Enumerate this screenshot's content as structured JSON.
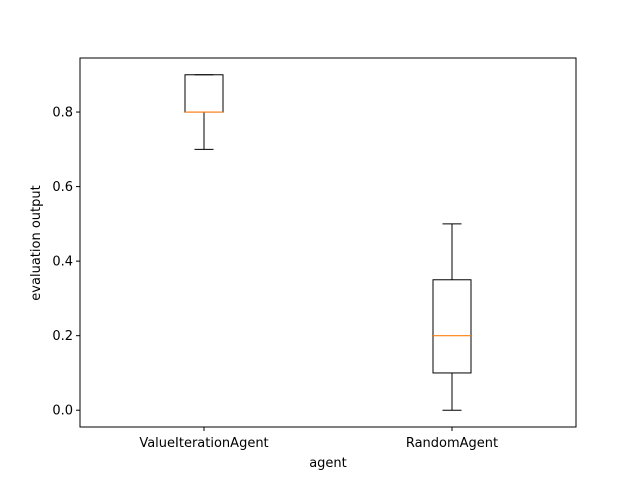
{
  "chart_data": {
    "type": "box",
    "xlabel": "agent",
    "ylabel": "evaluation output",
    "ylim": [
      -0.045,
      0.945
    ],
    "yticks": [
      0.0,
      0.2,
      0.4,
      0.6,
      0.8
    ],
    "ytick_labels": [
      "0.0",
      "0.2",
      "0.4",
      "0.6",
      "0.8"
    ],
    "categories": [
      "ValueIterationAgent",
      "RandomAgent"
    ],
    "boxes": [
      {
        "category": "ValueIterationAgent",
        "whisker_low": 0.7,
        "q1": 0.8,
        "median": 0.8,
        "q3": 0.9,
        "whisker_high": 0.9
      },
      {
        "category": "RandomAgent",
        "whisker_low": 0.0,
        "q1": 0.1,
        "median": 0.2,
        "q3": 0.35,
        "whisker_high": 0.5
      }
    ],
    "colors": {
      "box": "#000000",
      "median": "#ff7f0e"
    },
    "grid": false,
    "legend": "none"
  }
}
